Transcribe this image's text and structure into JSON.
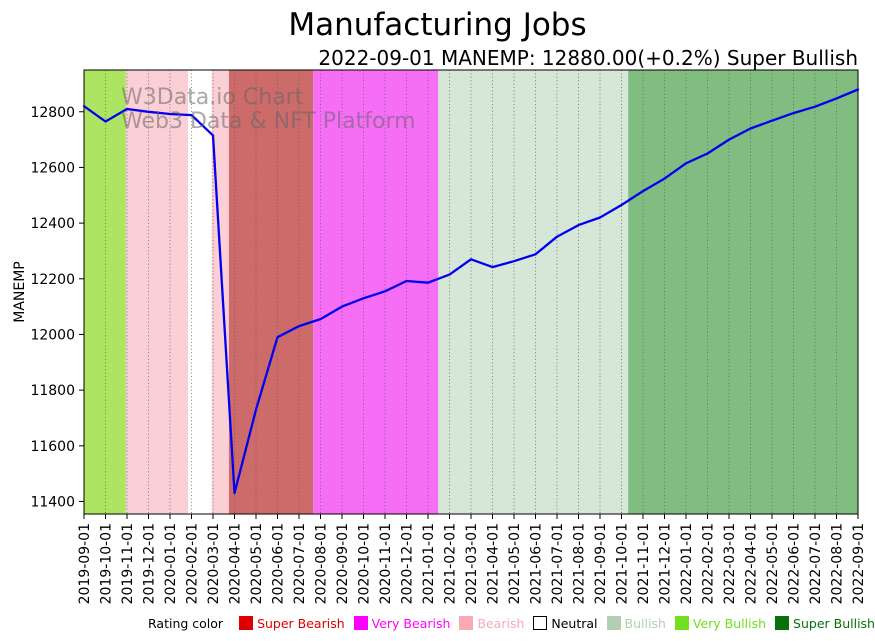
{
  "header": {
    "title": "Manufacturing Jobs",
    "subtitle": "2022-09-01 MANEMP: 12880.00(+0.2%) Super Bullish"
  },
  "watermark": {
    "line1": "W3Data.io Chart",
    "line2": "Web3 Data & NFT Platform"
  },
  "legend": {
    "label": "Rating color",
    "items": [
      {
        "label": "Super Bearish",
        "color": "#dd0000",
        "text_color": "#dd0000",
        "border": "#dd0000"
      },
      {
        "label": "Very Bearish",
        "color": "#ff00ff",
        "text_color": "#ff00ff",
        "border": "#ff00ff"
      },
      {
        "label": "Bearish",
        "color": "#f8aab4",
        "text_color": "#f8aab4",
        "border": "#f8aab4"
      },
      {
        "label": "Neutral",
        "color": "#ffffff",
        "text_color": "#000000",
        "border": "#000000"
      },
      {
        "label": "Bullish",
        "color": "#b3cfb3",
        "text_color": "#b3cfb3",
        "border": "#b3cfb3"
      },
      {
        "label": "Very Bullish",
        "color": "#70e01f",
        "text_color": "#70e01f",
        "border": "#70e01f"
      },
      {
        "label": "Super Bullish",
        "color": "#0a700a",
        "text_color": "#0a700a",
        "border": "#0a700a"
      }
    ]
  },
  "chart_data": {
    "type": "line",
    "title": "Manufacturing Jobs",
    "ylabel": "MANEMP",
    "xlabel": "",
    "line_color": "#0000ee",
    "grid": "vertical-dotted",
    "legend_position": "bottom",
    "ylim": [
      11355,
      12950
    ],
    "yticks": [
      11400,
      11600,
      11800,
      12000,
      12200,
      12400,
      12600,
      12800
    ],
    "x": [
      "2019-09-01",
      "2019-10-01",
      "2019-11-01",
      "2019-12-01",
      "2020-01-01",
      "2020-02-01",
      "2020-03-01",
      "2020-04-01",
      "2020-05-01",
      "2020-06-01",
      "2020-07-01",
      "2020-08-01",
      "2020-09-01",
      "2020-10-01",
      "2020-11-01",
      "2020-12-01",
      "2021-01-01",
      "2021-02-01",
      "2021-03-01",
      "2021-04-01",
      "2021-05-01",
      "2021-06-01",
      "2021-07-01",
      "2021-08-01",
      "2021-09-01",
      "2021-10-01",
      "2021-11-01",
      "2021-12-01",
      "2022-01-01",
      "2022-02-01",
      "2022-03-01",
      "2022-04-01",
      "2022-05-01",
      "2022-06-01",
      "2022-07-01",
      "2022-08-01",
      "2022-09-01"
    ],
    "values": [
      12820,
      12765,
      12810,
      12800,
      12792,
      12788,
      12715,
      11430,
      11730,
      11990,
      12030,
      12055,
      12100,
      12130,
      12155,
      12192,
      12186,
      12215,
      12270,
      12242,
      12263,
      12288,
      12351,
      12393,
      12420,
      12465,
      12515,
      12560,
      12615,
      12650,
      12700,
      12740,
      12768,
      12795,
      12818,
      12848,
      12880
    ],
    "bands": [
      {
        "rating": "Very Bullish",
        "from": 0.0,
        "to": 1.95,
        "color": "#ade563"
      },
      {
        "rating": "Bearish",
        "from": 1.95,
        "to": 4.84,
        "color": "#fad0d6"
      },
      {
        "rating": "Neutral",
        "from": 4.84,
        "to": 5.94,
        "color": "#ffffff"
      },
      {
        "rating": "Bearish",
        "from": 5.94,
        "to": 6.74,
        "color": "#fad0d6"
      },
      {
        "rating": "Super Bearish",
        "from": 6.74,
        "to": 10.66,
        "color": "#cd6b6b"
      },
      {
        "rating": "Very Bearish",
        "from": 10.66,
        "to": 16.48,
        "color": "#f56ef5"
      },
      {
        "rating": "Bullish",
        "from": 16.48,
        "to": 25.31,
        "color": "#d6e7d7"
      },
      {
        "rating": "Super Bullish",
        "from": 25.31,
        "to": 36.0,
        "color": "#81bd81"
      }
    ]
  }
}
